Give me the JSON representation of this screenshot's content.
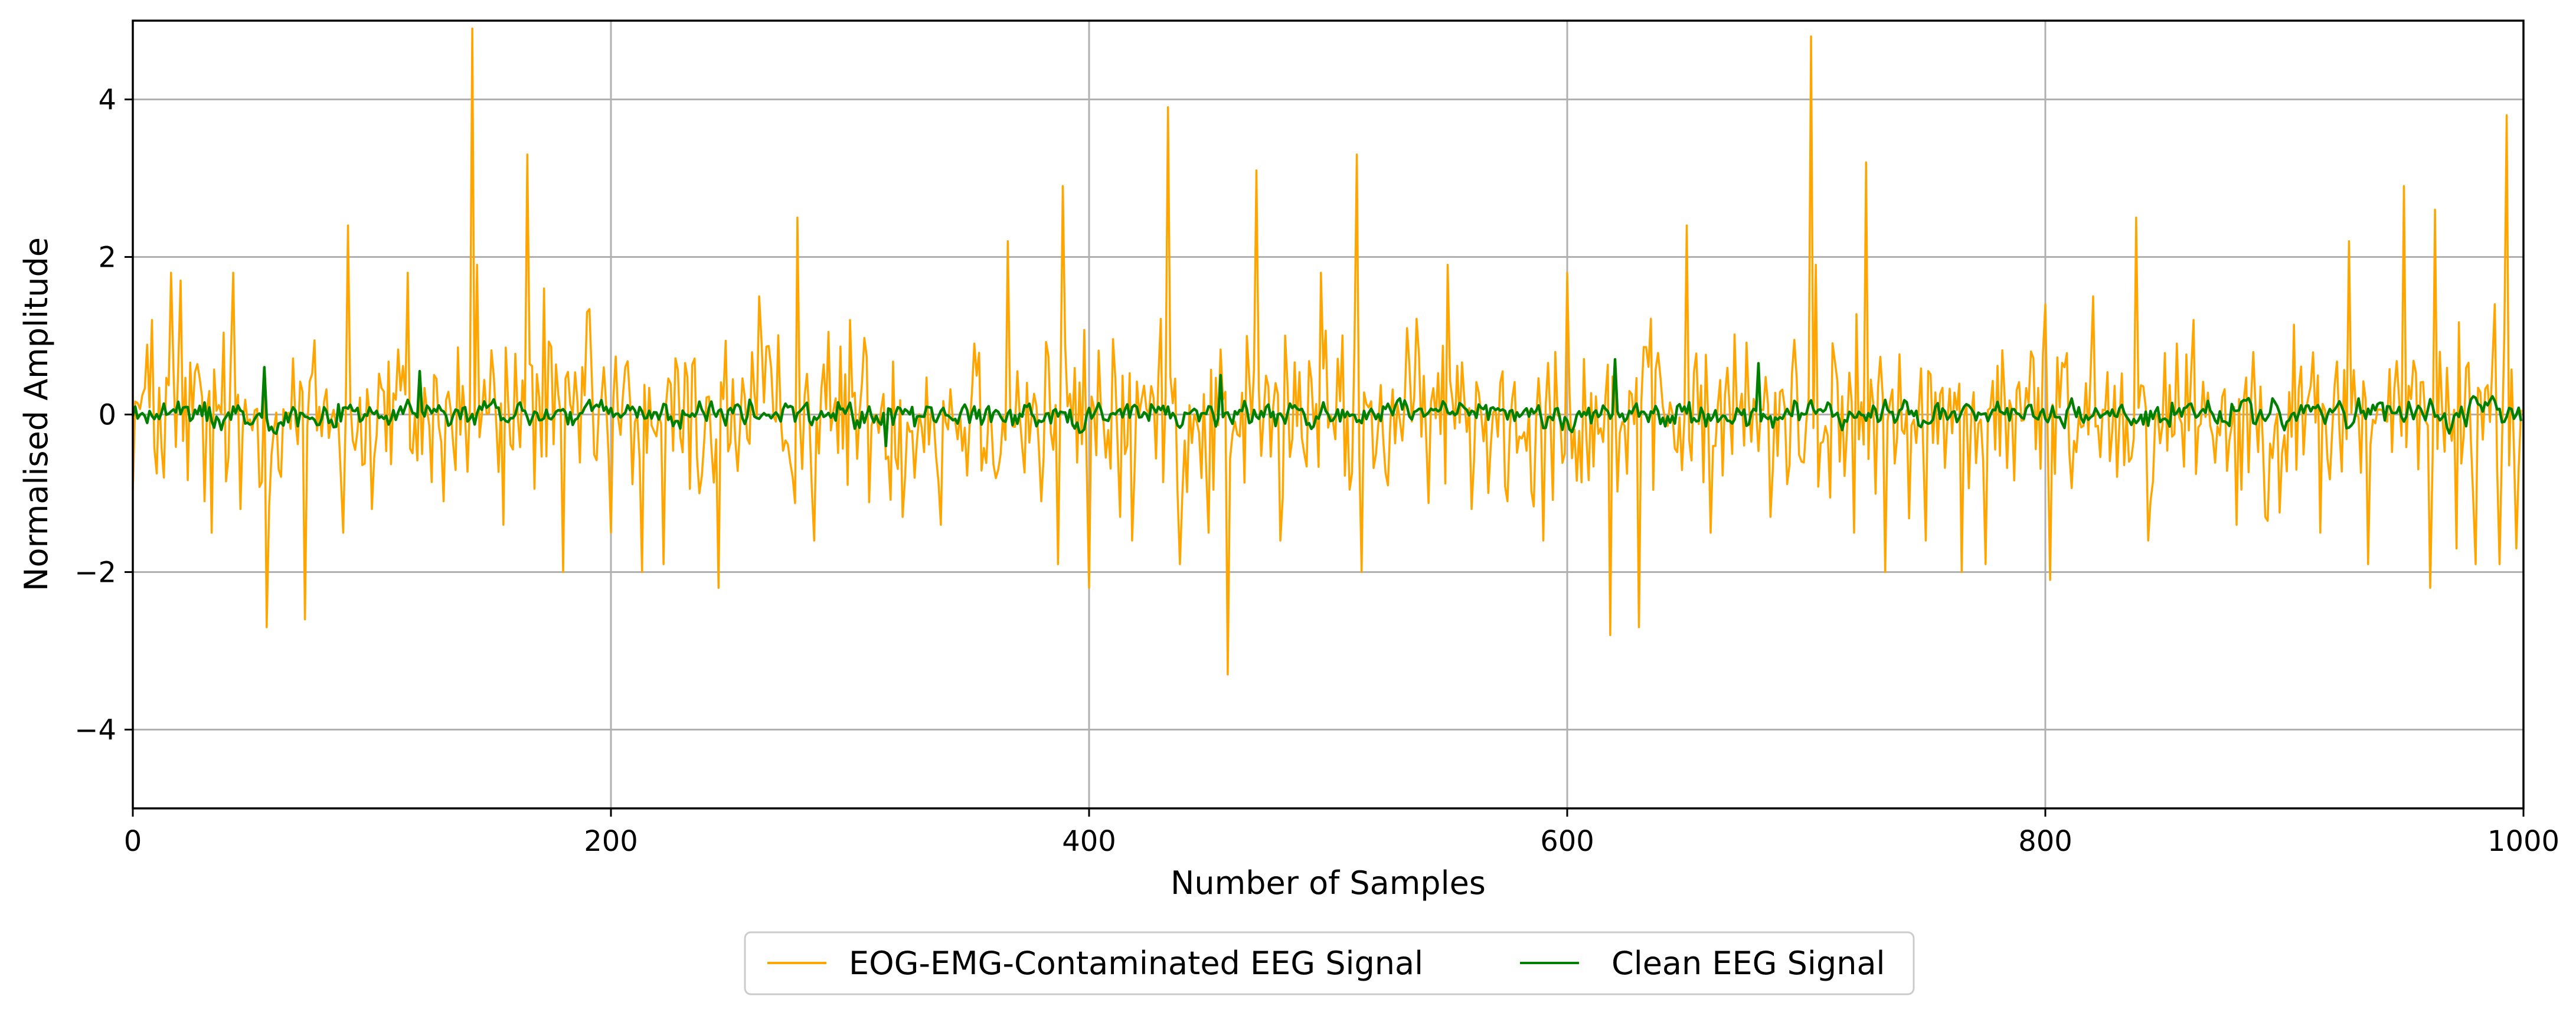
{
  "chart_data": {
    "type": "line",
    "title": "",
    "xlabel": "Number of Samples",
    "ylabel": "Normalised Amplitude",
    "xlim": [
      0,
      1000
    ],
    "ylim": [
      -5,
      5
    ],
    "grid": true,
    "legend_position": "bottom-center",
    "xticks": [
      0,
      200,
      400,
      600,
      800,
      1000
    ],
    "xtick_labels": [
      "0",
      "200",
      "400",
      "600",
      "800",
      "1000"
    ],
    "yticks": [
      4,
      2,
      0,
      -2,
      -4
    ],
    "ytick_labels": [
      "4",
      "2",
      "0",
      "−2",
      "−4"
    ],
    "series": [
      {
        "name": "EOG-EMG-Contaminated EEG Signal",
        "color": "#FFA500",
        "x_range": [
          0,
          999
        ],
        "noise_amplitude": 0.8,
        "spikes": [
          [
            8,
            1.2
          ],
          [
            13,
            -0.8
          ],
          [
            16,
            1.8
          ],
          [
            20,
            1.7
          ],
          [
            30,
            -1.1
          ],
          [
            33,
            -1.5
          ],
          [
            42,
            1.8
          ],
          [
            45,
            -1.2
          ],
          [
            56,
            -2.7
          ],
          [
            72,
            -2.6
          ],
          [
            88,
            -1.5
          ],
          [
            90,
            2.4
          ],
          [
            100,
            -1.2
          ],
          [
            115,
            1.8
          ],
          [
            130,
            -1.1
          ],
          [
            142,
            4.9
          ],
          [
            144,
            1.9
          ],
          [
            155,
            -1.4
          ],
          [
            165,
            3.3
          ],
          [
            172,
            1.6
          ],
          [
            180,
            -2.0
          ],
          [
            190,
            1.3
          ],
          [
            200,
            -1.5
          ],
          [
            213,
            -2.0
          ],
          [
            222,
            -1.9
          ],
          [
            237,
            -1.0
          ],
          [
            245,
            -2.2
          ],
          [
            262,
            1.5
          ],
          [
            278,
            2.5
          ],
          [
            285,
            -1.6
          ],
          [
            300,
            1.2
          ],
          [
            322,
            -1.3
          ],
          [
            338,
            -1.4
          ],
          [
            352,
            0.9
          ],
          [
            366,
            2.2
          ],
          [
            380,
            -1.1
          ],
          [
            387,
            -1.9
          ],
          [
            389,
            2.9
          ],
          [
            400,
            -2.2
          ],
          [
            413,
            -1.3
          ],
          [
            418,
            -1.6
          ],
          [
            433,
            3.9
          ],
          [
            438,
            -1.9
          ],
          [
            450,
            -1.5
          ],
          [
            458,
            -3.3
          ],
          [
            470,
            3.1
          ],
          [
            480,
            -1.6
          ],
          [
            497,
            1.8
          ],
          [
            512,
            3.3
          ],
          [
            514,
            -2.0
          ],
          [
            525,
            -0.9
          ],
          [
            550,
            1.9
          ],
          [
            560,
            -1.2
          ],
          [
            575,
            -1.1
          ],
          [
            590,
            -1.6
          ],
          [
            600,
            1.8
          ],
          [
            618,
            -2.8
          ],
          [
            630,
            -2.7
          ],
          [
            650,
            2.4
          ],
          [
            660,
            -1.5
          ],
          [
            685,
            -1.3
          ],
          [
            702,
            4.8
          ],
          [
            704,
            1.9
          ],
          [
            720,
            -1.5
          ],
          [
            725,
            3.2
          ],
          [
            733,
            -2.0
          ],
          [
            750,
            -1.6
          ],
          [
            765,
            -2.0
          ],
          [
            775,
            -1.9
          ],
          [
            800,
            1.4
          ],
          [
            802,
            -2.1
          ],
          [
            820,
            1.5
          ],
          [
            838,
            2.5
          ],
          [
            843,
            -1.6
          ],
          [
            862,
            1.2
          ],
          [
            880,
            -1.4
          ],
          [
            892,
            -1.3
          ],
          [
            915,
            -1.5
          ],
          [
            927,
            2.2
          ],
          [
            935,
            -1.9
          ],
          [
            950,
            2.9
          ],
          [
            961,
            -2.2
          ],
          [
            963,
            2.6
          ],
          [
            972,
            -1.7
          ],
          [
            980,
            -1.9
          ],
          [
            988,
            1.4
          ],
          [
            990,
            -1.9
          ],
          [
            993,
            3.8
          ],
          [
            997,
            -1.7
          ]
        ]
      },
      {
        "name": "Clean EEG Signal",
        "color": "#008000",
        "x_range": [
          0,
          999
        ],
        "noise_amplitude": 0.15,
        "spikes": [
          [
            55,
            0.6
          ],
          [
            120,
            0.55
          ],
          [
            620,
            0.7
          ],
          [
            680,
            0.65
          ],
          [
            455,
            0.5
          ],
          [
            315,
            -0.4
          ]
        ]
      }
    ]
  }
}
